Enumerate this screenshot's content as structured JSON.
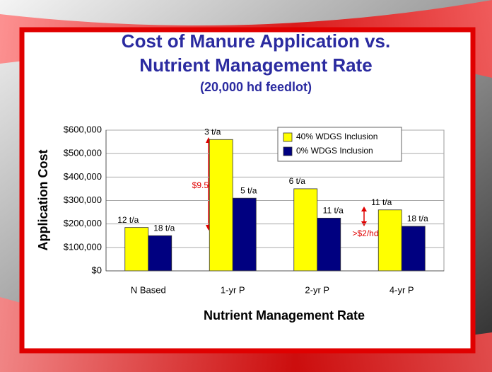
{
  "chart_data": {
    "type": "bar",
    "title": "Cost of Manure Application vs.",
    "title_line2": "Nutrient Management Rate",
    "subtitle": "(20,000 hd feedlot)",
    "x_label": "Nutrient Management Rate",
    "y_label": "Application Cost",
    "categories": [
      "N Based",
      "1-yr P",
      "2-yr P",
      "4-yr P"
    ],
    "series": [
      {
        "name": "40% WDGS Inclusion",
        "color": "#ffff00",
        "values": [
          185000,
          560000,
          350000,
          260000
        ],
        "bar_labels": [
          "12 t/a",
          "3 t/a",
          "6 t/a",
          "11 t/a"
        ]
      },
      {
        "name": "0% WDGS Inclusion",
        "color": "#000080",
        "values": [
          150000,
          310000,
          225000,
          190000
        ],
        "bar_labels": [
          "18 t/a",
          "5 t/a",
          "11 t/a",
          "18 t/a"
        ]
      }
    ],
    "annotations": [
      "$9.50/hd",
      ">$2/hd"
    ],
    "ylim": [
      0,
      600000
    ],
    "yticks": [
      {
        "value": 0,
        "label": "$0"
      },
      {
        "value": 100000,
        "label": "$100,000"
      },
      {
        "value": 200000,
        "label": "$200,000"
      },
      {
        "value": 300000,
        "label": "$300,000"
      },
      {
        "value": 400000,
        "label": "$400,000"
      },
      {
        "value": 500000,
        "label": "$500,000"
      },
      {
        "value": 600000,
        "label": "$600,000"
      }
    ],
    "grid": true,
    "legend": "top-right"
  }
}
